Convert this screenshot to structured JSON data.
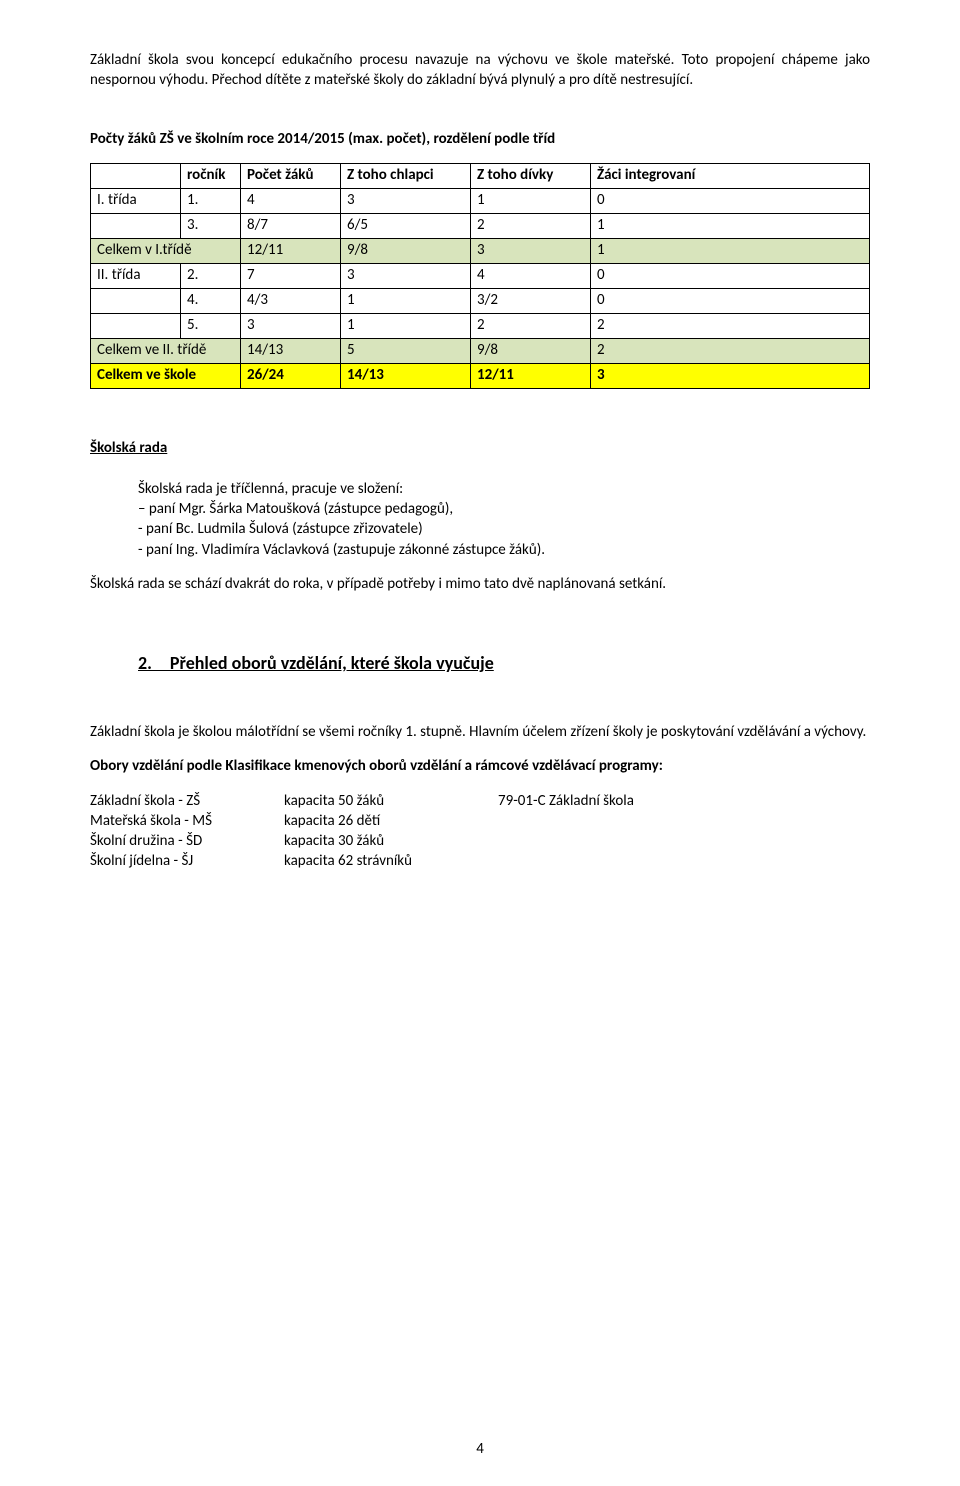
{
  "intro1": "Základní škola svou koncepcí edukačního procesu navazuje na výchovu ve škole mateřské. Toto propojení chápeme jako nespornou výhodu. Přechod dítěte z mateřské školy do základní bývá plynulý a pro dítě nestresující.",
  "counts_title": "Počty žáků ZŠ ve školním roce 2014/2015 (max. počet), rozdělení podle tříd",
  "table": {
    "headers": {
      "c1": "",
      "c2": "ročník",
      "c3": "Počet žáků",
      "c4": "Z toho chlapci",
      "c5": "Z toho dívky",
      "c6": "Žáci integrovaní"
    },
    "rows": [
      {
        "c1": "I. třída",
        "c2": "1.",
        "c3": "4",
        "c4": "3",
        "c5": "1",
        "c6": "0",
        "hl": ""
      },
      {
        "c1": "",
        "c2": "3.",
        "c3": "8/7",
        "c4": "6/5",
        "c5": "2",
        "c6": "1",
        "hl": ""
      },
      {
        "c1": "Celkem v I.třídě",
        "c2": "",
        "c3": "12/11",
        "c4": "9/8",
        "c5": "3",
        "c6": "1",
        "hl": "green",
        "merge": true
      },
      {
        "c1": "II. třída",
        "c2": "2.",
        "c3": "7",
        "c4": "3",
        "c5": "4",
        "c6": "0",
        "hl": ""
      },
      {
        "c1": "",
        "c2": "4.",
        "c3": "4/3",
        "c4": "1",
        "c5": "3/2",
        "c6": "0",
        "hl": ""
      },
      {
        "c1": "",
        "c2": "5.",
        "c3": "3",
        "c4": "1",
        "c5": "2",
        "c6": "2",
        "hl": ""
      },
      {
        "c1": "Celkem ve II. třídě",
        "c2": "",
        "c3": "14/13",
        "c4": "5",
        "c5": "9/8",
        "c6": "2",
        "hl": "green",
        "merge": true
      },
      {
        "c1": "Celkem ve škole",
        "c2": "",
        "c3": "26/24",
        "c4": "14/13",
        "c5": "12/11",
        "c6": "3",
        "hl": "yellow",
        "merge": true,
        "bold": true
      }
    ],
    "col_widths": [
      "90px",
      "60px",
      "100px",
      "130px",
      "120px",
      "auto"
    ]
  },
  "rada_heading": "Školská rada",
  "rada_lines": [
    "Školská rada je tříčlenná, pracuje ve složení:",
    "– paní Mgr. Šárka Matoušková (zástupce pedagogů),",
    "- paní Bc. Ludmila Šulová (zástupce zřizovatele)",
    "- paní Ing. Vladimíra Václavková (zastupuje zákonné zástupce žáků)."
  ],
  "rada_para": "Školská rada se schází dvakrát do roka, v případě potřeby i mimo tato dvě naplánovaná setkání.",
  "section2_title": "2. Přehled oborů vzdělání, které škola vyučuje",
  "sec2_p1": "Základní škola je školou málotřídní se všemi ročníky 1. stupně.  Hlavním účelem zřízení školy je poskytování vzdělávání a výchovy.",
  "sec2_p2": "Obory vzdělání podle Klasifikace kmenových oborů vzdělání a rámcové vzdělávací programy:",
  "capacities": [
    {
      "c1": "Základní škola - ZŠ",
      "c2": "kapacita 50 žáků",
      "c3": "79-01-C  Základní škola"
    },
    {
      "c1": "Mateřská škola - MŠ",
      "c2": "kapacita 26 dětí",
      "c3": ""
    },
    {
      "c1": "Školní družina - ŠD",
      "c2": "kapacita 30 žáků",
      "c3": ""
    },
    {
      "c1": "Školní jídelna - ŠJ",
      "c2": "kapacita 62 strávníků",
      "c3": ""
    }
  ],
  "page_number": "4"
}
